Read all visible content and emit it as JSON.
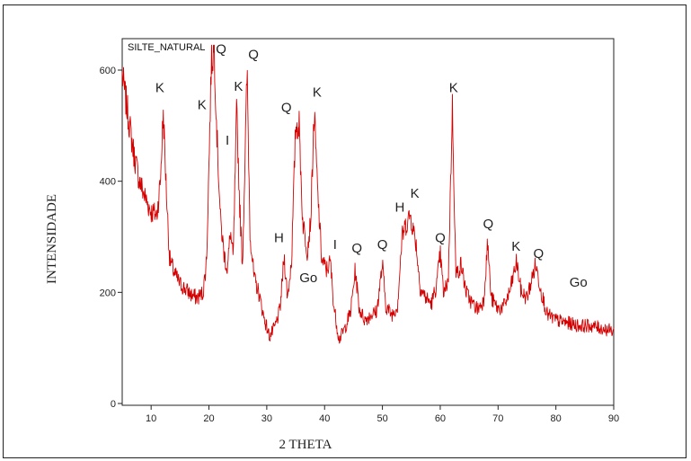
{
  "chart_data": {
    "type": "line",
    "title": "SILTE_NATURAL",
    "xlabel": "2 THETA",
    "ylabel": "INTENSIDADE",
    "xlim": [
      5,
      90
    ],
    "ylim": [
      0,
      650
    ],
    "xticks": [
      10,
      20,
      30,
      40,
      50,
      60,
      70,
      80,
      90
    ],
    "yticks": [
      0,
      200,
      400,
      600
    ],
    "grid": false,
    "color": "#d40000",
    "profile": [
      [
        5,
        590
      ],
      [
        6,
        520
      ],
      [
        7,
        450
      ],
      [
        8,
        400
      ],
      [
        9,
        370
      ],
      [
        10,
        345
      ],
      [
        11,
        340
      ],
      [
        11.6,
        400
      ],
      [
        12.1,
        525
      ],
      [
        12.6,
        390
      ],
      [
        13.2,
        260
      ],
      [
        14,
        235
      ],
      [
        15,
        215
      ],
      [
        16,
        205
      ],
      [
        17,
        195
      ],
      [
        18,
        190
      ],
      [
        19,
        200
      ],
      [
        19.6,
        260
      ],
      [
        20,
        430
      ],
      [
        20.4,
        610
      ],
      [
        20.9,
        640
      ],
      [
        21.4,
        480
      ],
      [
        22,
        330
      ],
      [
        22.6,
        270
      ],
      [
        23.2,
        240
      ],
      [
        23.7,
        310
      ],
      [
        24.2,
        260
      ],
      [
        24.8,
        530
      ],
      [
        25.3,
        360
      ],
      [
        25.8,
        250
      ],
      [
        26.6,
        600
      ],
      [
        27.1,
        310
      ],
      [
        27.8,
        225
      ],
      [
        28.6,
        200
      ],
      [
        29.5,
        155
      ],
      [
        30.5,
        120
      ],
      [
        31.5,
        140
      ],
      [
        32.3,
        170
      ],
      [
        33,
        265
      ],
      [
        33.6,
        190
      ],
      [
        34.3,
        260
      ],
      [
        35,
        500
      ],
      [
        35.6,
        500
      ],
      [
        36.2,
        330
      ],
      [
        37,
        275
      ],
      [
        37.6,
        330
      ],
      [
        38.2,
        525
      ],
      [
        38.8,
        380
      ],
      [
        39.5,
        260
      ],
      [
        40.3,
        240
      ],
      [
        41,
        255
      ],
      [
        41.6,
        175
      ],
      [
        42.5,
        115
      ],
      [
        43.5,
        135
      ],
      [
        44.5,
        165
      ],
      [
        45.3,
        240
      ],
      [
        46,
        170
      ],
      [
        47,
        150
      ],
      [
        48,
        160
      ],
      [
        49,
        165
      ],
      [
        50,
        250
      ],
      [
        50.6,
        175
      ],
      [
        51.6,
        160
      ],
      [
        52.6,
        175
      ],
      [
        53.4,
        300
      ],
      [
        54,
        320
      ],
      [
        54.8,
        340
      ],
      [
        55.8,
        290
      ],
      [
        56.5,
        210
      ],
      [
        57.5,
        190
      ],
      [
        58.5,
        180
      ],
      [
        59.4,
        215
      ],
      [
        60,
        270
      ],
      [
        60.6,
        195
      ],
      [
        61.4,
        225
      ],
      [
        62.1,
        535
      ],
      [
        62.7,
        230
      ],
      [
        63.6,
        250
      ],
      [
        64.5,
        200
      ],
      [
        65.5,
        180
      ],
      [
        66.5,
        170
      ],
      [
        67.5,
        185
      ],
      [
        68.2,
        290
      ],
      [
        68.8,
        190
      ],
      [
        70,
        170
      ],
      [
        71,
        175
      ],
      [
        72,
        200
      ],
      [
        73.2,
        255
      ],
      [
        74,
        200
      ],
      [
        75,
        190
      ],
      [
        76.5,
        250
      ],
      [
        77.5,
        200
      ],
      [
        78.5,
        160
      ],
      [
        80,
        150
      ],
      [
        82,
        145
      ],
      [
        84,
        140
      ],
      [
        86,
        140
      ],
      [
        88,
        135
      ],
      [
        90,
        130
      ]
    ],
    "peaks": [
      {
        "label": "K",
        "x": 11.5,
        "y": 560
      },
      {
        "label": "K",
        "x": 18.8,
        "y": 530
      },
      {
        "label": "Q",
        "x": 22.1,
        "y": 630
      },
      {
        "label": "I",
        "x": 23.2,
        "y": 466
      },
      {
        "label": "K",
        "x": 25.1,
        "y": 563
      },
      {
        "label": "Q",
        "x": 27.7,
        "y": 620
      },
      {
        "label": "H",
        "x": 32.1,
        "y": 290
      },
      {
        "label": "Q",
        "x": 33.4,
        "y": 525
      },
      {
        "label": "Go",
        "x": 37.2,
        "y": 218
      },
      {
        "label": "K",
        "x": 38.7,
        "y": 552
      },
      {
        "label": "I",
        "x": 41.8,
        "y": 278
      },
      {
        "label": "Q",
        "x": 45.6,
        "y": 272
      },
      {
        "label": "Q",
        "x": 50,
        "y": 278
      },
      {
        "label": "H",
        "x": 53,
        "y": 345
      },
      {
        "label": "K",
        "x": 55.6,
        "y": 370
      },
      {
        "label": "Q",
        "x": 60,
        "y": 290
      },
      {
        "label": "K",
        "x": 62.3,
        "y": 560
      },
      {
        "label": "Q",
        "x": 68.3,
        "y": 315
      },
      {
        "label": "K",
        "x": 73.1,
        "y": 275
      },
      {
        "label": "Q",
        "x": 77,
        "y": 262
      },
      {
        "label": "Go",
        "x": 83.9,
        "y": 210
      }
    ]
  }
}
